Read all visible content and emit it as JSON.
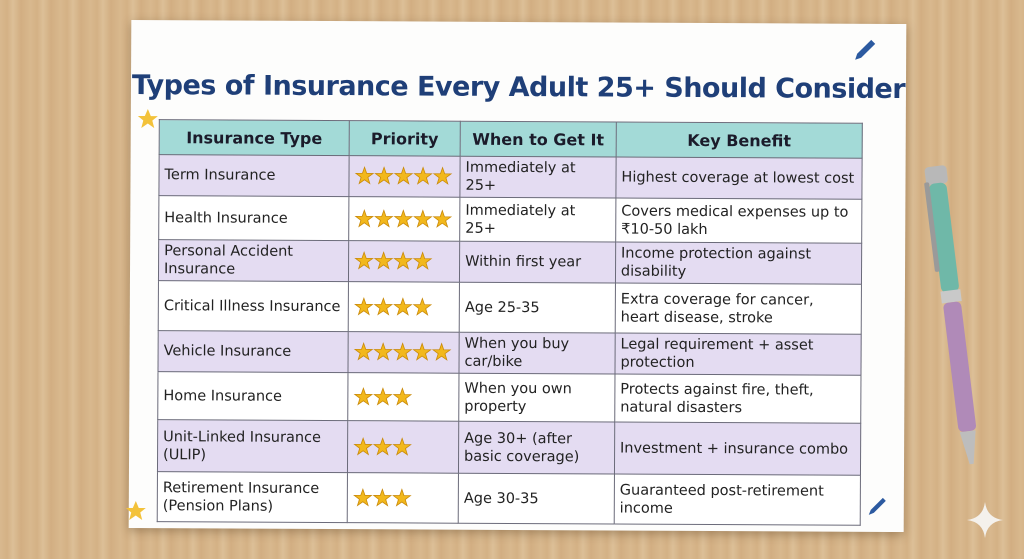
{
  "title": "Types of Insurance Every Adult 25+ Should Consider",
  "table": {
    "headers": [
      "Insurance Type",
      "Priority",
      "When to Get It",
      "Key Benefit"
    ],
    "rows": [
      {
        "type": "Term Insurance",
        "priority": 5,
        "when": "Immediately at 25+",
        "benefit": "Highest coverage at lowest cost"
      },
      {
        "type": "Health Insurance",
        "priority": 5,
        "when": "Immediately at 25+",
        "benefit": "Covers medical expenses up to ₹10-50 lakh"
      },
      {
        "type": "Personal Accident Insurance",
        "priority": 4,
        "when": "Within first year",
        "benefit": "Income protection against disability"
      },
      {
        "type": "Critical Illness Insurance",
        "priority": 4,
        "when": "Age 25-35",
        "benefit": "Extra coverage for cancer, heart disease, stroke"
      },
      {
        "type": "Vehicle Insurance",
        "priority": 5,
        "when": "When you buy car/bike",
        "benefit": "Legal requirement + asset protection"
      },
      {
        "type": "Home Insurance",
        "priority": 3,
        "when": "When you own property",
        "benefit": "Protects against fire, theft, natural disasters"
      },
      {
        "type": "Unit-Linked Insurance (ULIP)",
        "priority": 3,
        "when": "Age 30+ (after basic coverage)",
        "benefit": "Investment + insurance combo"
      },
      {
        "type": "Retirement Insurance (Pension Plans)",
        "priority": 3,
        "when": "Age 30-35",
        "benefit": "Guaranteed post-retirement income"
      }
    ]
  }
}
